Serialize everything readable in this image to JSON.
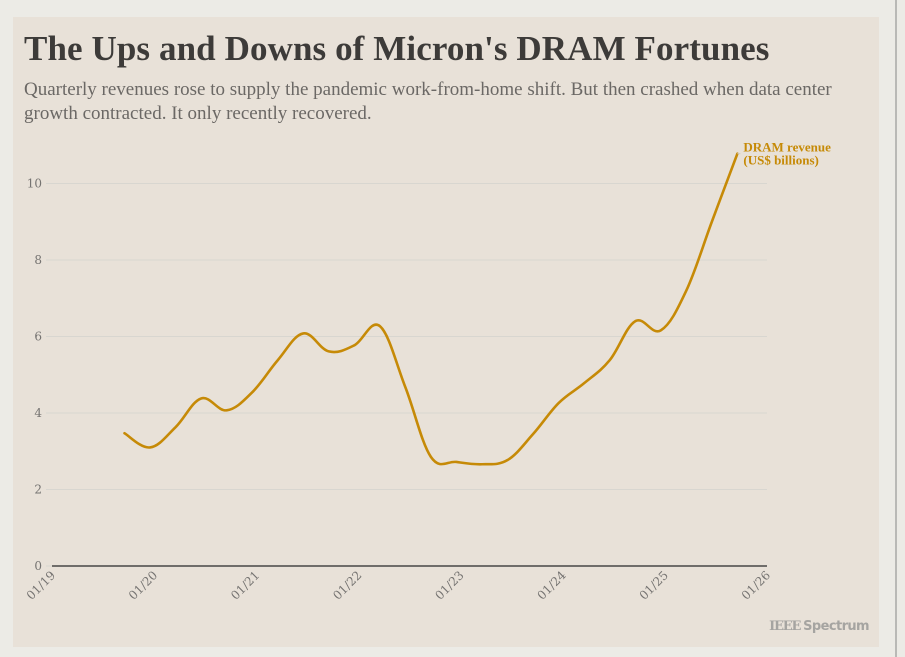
{
  "header": {
    "title": "The Ups and Downs of Micron's DRAM Fortunes",
    "subtitle": "Quarterly revenues rose to supply the pandemic work-from-home shift. But then crashed when data center growth contracted. It only recently recovered."
  },
  "footer": {
    "brand_prefix": "IEEE",
    "brand_name": "Spectrum"
  },
  "colors": {
    "page_background": "#ecebe6",
    "card_background": "#e8e1d8",
    "series": "#c68a07",
    "gridline": "#d8d6d0",
    "axis": "#6f6d6a",
    "title": "#3d3b39",
    "subtitle": "#6b6865",
    "tick_text": "#757371",
    "brand": "#a5a4a1"
  },
  "chart_data": {
    "type": "line",
    "title": "The Ups and Downs of Micron's DRAM Fortunes",
    "subtitle": "Quarterly revenues rose to supply the pandemic work-from-home shift. But then crashed when data center growth contracted. It only recently recovered.",
    "xlabel": "",
    "ylabel": "",
    "x_unit": "years since 01/2019",
    "xlim": [
      0,
      7
    ],
    "ylim": [
      0,
      11
    ],
    "grid": true,
    "x_ticks": [
      {
        "value": 0,
        "label": "01/19"
      },
      {
        "value": 1,
        "label": "01/20"
      },
      {
        "value": 2,
        "label": "01/21"
      },
      {
        "value": 3,
        "label": "01/22"
      },
      {
        "value": 4,
        "label": "01/23"
      },
      {
        "value": 5,
        "label": "01/24"
      },
      {
        "value": 6,
        "label": "01/25"
      },
      {
        "value": 7,
        "label": "01/26"
      }
    ],
    "y_ticks": [
      0,
      2,
      4,
      6,
      8,
      10
    ],
    "series": [
      {
        "name": "DRAM revenue",
        "label_lines": [
          "DRAM revenue",
          "(US$ billions)"
        ],
        "label_placement": "end-right",
        "x": [
          0.71,
          0.96,
          1.21,
          1.46,
          1.71,
          1.96,
          2.21,
          2.46,
          2.71,
          2.96,
          3.21,
          3.46,
          3.71,
          3.96,
          4.21,
          4.46,
          4.71,
          4.96,
          5.21,
          5.46,
          5.71,
          5.96,
          6.21,
          6.46,
          6.71
        ],
        "values": [
          3.47,
          3.1,
          3.63,
          4.38,
          4.07,
          4.54,
          5.38,
          6.08,
          5.61,
          5.77,
          6.27,
          4.67,
          2.85,
          2.72,
          2.66,
          2.77,
          3.45,
          4.26,
          4.78,
          5.38,
          6.4,
          6.16,
          7.2,
          9.0,
          10.78
        ]
      }
    ]
  }
}
